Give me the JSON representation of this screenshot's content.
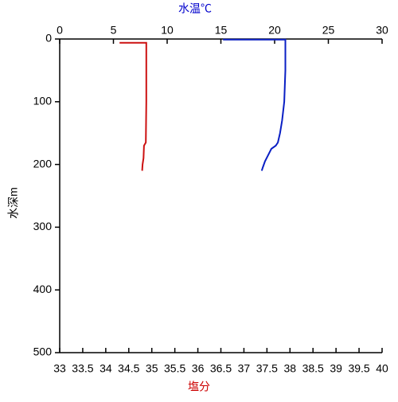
{
  "chart_data": {
    "type": "line",
    "xlabel": "塩分",
    "xlabel_color": "#cc0000",
    "x2label": "水温℃",
    "x2label_color": "#0000cc",
    "ylabel": "水深m",
    "xlim": [
      33,
      40
    ],
    "xticks": [
      33,
      33.5,
      34,
      34.5,
      35,
      35.5,
      36,
      36.5,
      37,
      37.5,
      38,
      38.5,
      39,
      39.5,
      40
    ],
    "x2lim": [
      0,
      30
    ],
    "x2ticks": [
      0,
      5,
      10,
      15,
      20,
      25,
      30
    ],
    "ylim": [
      0,
      500
    ],
    "yticks": [
      0,
      100,
      200,
      300,
      400,
      500
    ],
    "y_inverted": true,
    "series": [
      {
        "axis": "x2",
        "color": "#0a1fc4",
        "x": [
          15.2,
          21.0,
          21.0,
          20.9,
          20.7,
          20.5,
          20.3,
          20.1,
          19.7,
          19.4,
          19.1,
          18.9,
          18.8
        ],
        "y": [
          1,
          1,
          50,
          100,
          130,
          150,
          165,
          170,
          175,
          185,
          195,
          205,
          210
        ]
      },
      {
        "axis": "x",
        "color": "#cc1111",
        "x": [
          34.3,
          34.88,
          34.88,
          34.87,
          34.83,
          34.82,
          34.8,
          34.79
        ],
        "y": [
          6,
          6,
          100,
          165,
          170,
          190,
          200,
          210
        ]
      }
    ]
  }
}
